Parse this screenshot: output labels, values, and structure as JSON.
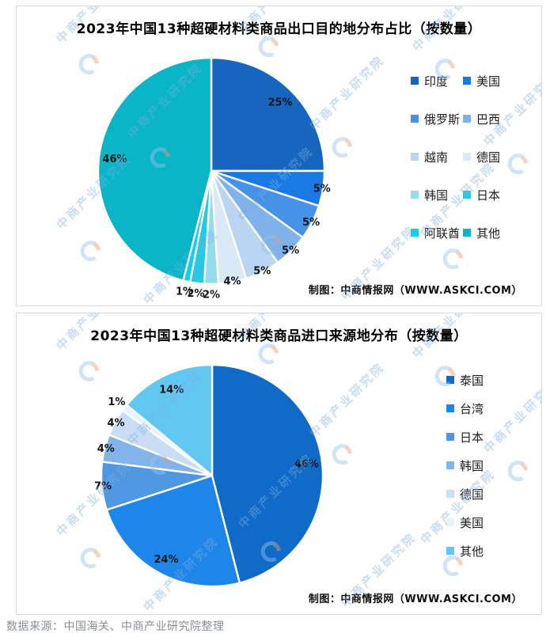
{
  "page": {
    "footer": "数据来源：中国海关、中商产业研究院整理",
    "watermark_text": "中商产业研究院"
  },
  "chart_data": [
    {
      "type": "pie",
      "title": "2023年中国13种超硬材料类商品出口目的地分布占比（按数量）",
      "unit": "percent",
      "start_angle_deg": 0,
      "direction": "clockwise",
      "legend_position": "right",
      "legend_columns": 2,
      "credit": "制图：中商情报网（WWW.ASKCI.COM）",
      "slices": [
        {
          "label": "印度",
          "value": 25,
          "color": "#1666c0"
        },
        {
          "label": "美国",
          "value": 5,
          "color": "#187ae2"
        },
        {
          "label": "俄罗斯",
          "value": 5,
          "color": "#4592e6"
        },
        {
          "label": "巴西",
          "value": 5,
          "color": "#7fb1ea"
        },
        {
          "label": "越南",
          "value": 5,
          "color": "#b9d5f2"
        },
        {
          "label": "德国",
          "value": 4,
          "color": "#d9e9f8"
        },
        {
          "label": "韩国",
          "value": 2,
          "color": "#93dcec"
        },
        {
          "label": "日本",
          "value": 2,
          "color": "#29c8e2"
        },
        {
          "label": "阿联酋",
          "value": 1,
          "color": "#06d2e8"
        },
        {
          "label": "其他",
          "value": 46,
          "color": "#0ab5c8"
        }
      ]
    },
    {
      "type": "pie",
      "title": "2023年中国13种超硬材料类商品进口来源地分布（按数量）",
      "unit": "percent",
      "start_angle_deg": 0,
      "direction": "clockwise",
      "legend_position": "right",
      "legend_columns": 1,
      "credit": "制图：中商情报网（WWW.ASKCI.COM）",
      "slices": [
        {
          "label": "泰国",
          "value": 46,
          "color": "#0f6ac8"
        },
        {
          "label": "台湾",
          "value": 24,
          "color": "#1e86e8"
        },
        {
          "label": "日本",
          "value": 7,
          "color": "#4f97e0"
        },
        {
          "label": "韩国",
          "value": 4,
          "color": "#82b3ea"
        },
        {
          "label": "德国",
          "value": 4,
          "color": "#c9def5"
        },
        {
          "label": "美国",
          "value": 1,
          "color": "#e8f2fb"
        },
        {
          "label": "其他",
          "value": 14,
          "color": "#62c8f2"
        }
      ]
    }
  ]
}
